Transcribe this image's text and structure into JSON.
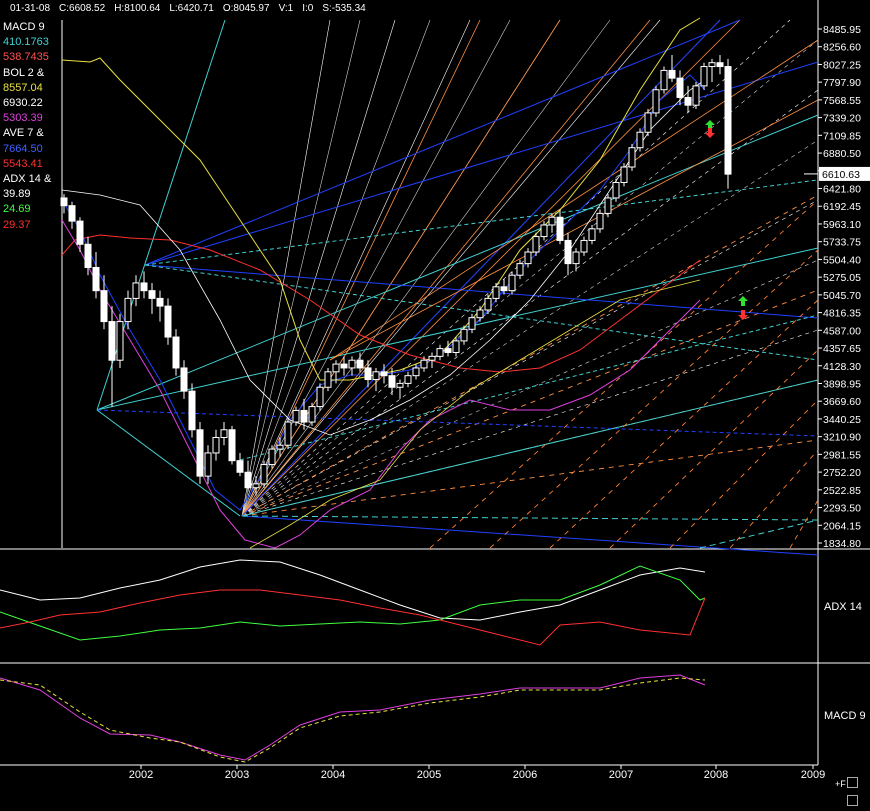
{
  "header": {
    "date": "01-31-08",
    "close": "C:6608.52",
    "high": "H:8100.64",
    "low": "L:6420.71",
    "open": "O:8045.97",
    "volume": "V:1",
    "oi": "I:0",
    "s": "S:-535.34"
  },
  "legend": [
    {
      "text": "MACD  9",
      "color": "#ffffff"
    },
    {
      "text": "410.1763",
      "color": "#3fd0d8"
    },
    {
      "text": "538.7435",
      "color": "#ff5050"
    },
    {
      "text": "BOL  2 &",
      "color": "#ffffff"
    },
    {
      "text": "8557.04",
      "color": "#e8e040"
    },
    {
      "text": "6930.22",
      "color": "#ffffff"
    },
    {
      "text": "5303.39",
      "color": "#e040e0"
    },
    {
      "text": "AVE  7 &",
      "color": "#ffffff"
    },
    {
      "text": "7664.50",
      "color": "#4060ff"
    },
    {
      "text": "5543.41",
      "color": "#ff3030"
    },
    {
      "text": "ADX  14 &",
      "color": "#ffffff"
    },
    {
      "text": "39.89",
      "color": "#ffffff"
    },
    {
      "text": "24.69",
      "color": "#40ff40"
    },
    {
      "text": "29.37",
      "color": "#ff3030"
    }
  ],
  "panel_labels": {
    "adx": "ADX  14",
    "macd": "MACD  9"
  },
  "more_label": "+F",
  "chart_data": {
    "type": "candlestick",
    "price_axis_ticks": [
      "8485.95",
      "8256.60",
      "8027.25",
      "7797.90",
      "7568.55",
      "7339.20",
      "7109.85",
      "6880.50",
      "6651.15",
      "6421.80",
      "6192.45",
      "5963.10",
      "5733.75",
      "5504.40",
      "5275.05",
      "5045.70",
      "4816.35",
      "4587.00",
      "4357.65",
      "4128.30",
      "3898.95",
      "3669.60",
      "3440.25",
      "3210.90",
      "2981.55",
      "2752.20",
      "2522.85",
      "2293.50",
      "2064.15",
      "1834.80"
    ],
    "current_price_label": "6610.63",
    "x_axis_labels": [
      "2002",
      "2003",
      "2004",
      "2005",
      "2006",
      "2007",
      "2008",
      "2009"
    ],
    "ohlc_monthly": [
      [
        6300,
        6350,
        6100,
        6200
      ],
      [
        6200,
        6250,
        5900,
        6000
      ],
      [
        6000,
        6050,
        5600,
        5700
      ],
      [
        5700,
        5800,
        5300,
        5400
      ],
      [
        5400,
        5600,
        5000,
        5100
      ],
      [
        5100,
        5300,
        4600,
        4700
      ],
      [
        4700,
        4900,
        3600,
        4200
      ],
      [
        4200,
        4800,
        4100,
        4700
      ],
      [
        4700,
        5100,
        4600,
        5000
      ],
      [
        5000,
        5300,
        4900,
        5200
      ],
      [
        5200,
        5350,
        5000,
        5100
      ],
      [
        5100,
        5200,
        4800,
        5000
      ],
      [
        5000,
        5100,
        4700,
        4900
      ],
      [
        4900,
        5000,
        4400,
        4500
      ],
      [
        4500,
        4600,
        4000,
        4100
      ],
      [
        4100,
        4200,
        3700,
        3800
      ],
      [
        3800,
        3900,
        3200,
        3300
      ],
      [
        3300,
        3400,
        2600,
        2700
      ],
      [
        2700,
        3100,
        2600,
        3000
      ],
      [
        3000,
        3300,
        2900,
        3200
      ],
      [
        3200,
        3400,
        3100,
        3300
      ],
      [
        3300,
        3350,
        2850,
        2900
      ],
      [
        2900,
        3000,
        2700,
        2750
      ],
      [
        2750,
        2900,
        2500,
        2550
      ],
      [
        2550,
        2700,
        2450,
        2600
      ],
      [
        2600,
        2900,
        2550,
        2850
      ],
      [
        2850,
        3100,
        2800,
        3050
      ],
      [
        3050,
        3200,
        2950,
        3100
      ],
      [
        3100,
        3450,
        3050,
        3400
      ],
      [
        3400,
        3600,
        3350,
        3550
      ],
      [
        3550,
        3700,
        3300,
        3400
      ],
      [
        3400,
        3650,
        3350,
        3600
      ],
      [
        3600,
        3900,
        3550,
        3850
      ],
      [
        3850,
        4100,
        3800,
        4050
      ],
      [
        4050,
        4200,
        3900,
        4150
      ],
      [
        4150,
        4250,
        4000,
        4100
      ],
      [
        4100,
        4250,
        4000,
        4200
      ],
      [
        4200,
        4300,
        4050,
        4100
      ],
      [
        4100,
        4200,
        3850,
        3950
      ],
      [
        3950,
        4100,
        3800,
        4050
      ],
      [
        4050,
        4150,
        3900,
        4000
      ],
      [
        4000,
        4100,
        3750,
        3850
      ],
      [
        3850,
        3950,
        3700,
        3900
      ],
      [
        3900,
        4050,
        3850,
        4000
      ],
      [
        4000,
        4150,
        3950,
        4100
      ],
      [
        4100,
        4250,
        4050,
        4200
      ],
      [
        4200,
        4300,
        4100,
        4250
      ],
      [
        4250,
        4400,
        4200,
        4350
      ],
      [
        4350,
        4450,
        4250,
        4300
      ],
      [
        4300,
        4500,
        4250,
        4450
      ],
      [
        4450,
        4650,
        4400,
        4600
      ],
      [
        4600,
        4800,
        4550,
        4750
      ],
      [
        4750,
        4900,
        4700,
        4850
      ],
      [
        4850,
        5050,
        4800,
        5000
      ],
      [
        5000,
        5200,
        4950,
        5150
      ],
      [
        5150,
        5250,
        5050,
        5100
      ],
      [
        5100,
        5350,
        5050,
        5300
      ],
      [
        5300,
        5500,
        5250,
        5450
      ],
      [
        5450,
        5650,
        5400,
        5600
      ],
      [
        5600,
        5850,
        5550,
        5800
      ],
      [
        5800,
        6000,
        5750,
        5950
      ],
      [
        5950,
        6100,
        5850,
        6050
      ],
      [
        6050,
        6150,
        5700,
        5750
      ],
      [
        5750,
        5850,
        5300,
        5450
      ],
      [
        5450,
        5650,
        5350,
        5600
      ],
      [
        5600,
        5800,
        5550,
        5750
      ],
      [
        5750,
        5950,
        5700,
        5900
      ],
      [
        5900,
        6150,
        5850,
        6100
      ],
      [
        6100,
        6350,
        6050,
        6300
      ],
      [
        6300,
        6550,
        6250,
        6500
      ],
      [
        6500,
        6750,
        6450,
        6700
      ],
      [
        6700,
        7000,
        6650,
        6950
      ],
      [
        6950,
        7200,
        6900,
        7150
      ],
      [
        7150,
        7450,
        7100,
        7400
      ],
      [
        7400,
        7750,
        7350,
        7700
      ],
      [
        7700,
        8000,
        7650,
        7950
      ],
      [
        7950,
        8150,
        7800,
        7850
      ],
      [
        7850,
        7950,
        7500,
        7600
      ],
      [
        7600,
        7750,
        7400,
        7500
      ],
      [
        7500,
        7800,
        7450,
        7750
      ],
      [
        7750,
        8050,
        7700,
        8000
      ],
      [
        8000,
        8100,
        7800,
        8050
      ],
      [
        8050,
        8150,
        7900,
        8000
      ],
      [
        8000,
        8100,
        6420,
        6608
      ]
    ]
  }
}
